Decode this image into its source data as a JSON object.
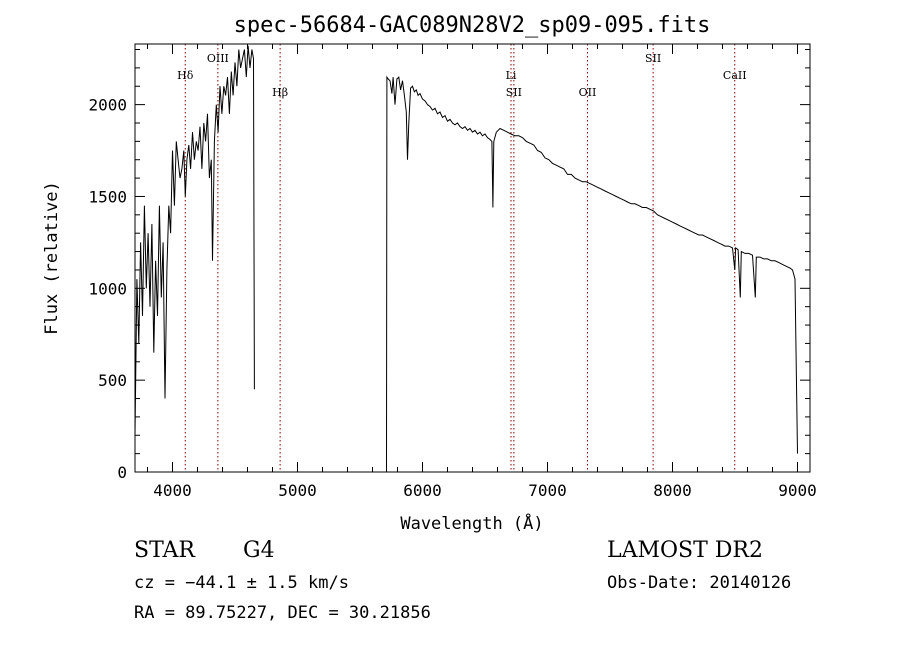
{
  "chart_data": {
    "type": "line",
    "title": "spec-56684-GAC089N28V2_sp09-095.fits",
    "xlabel": "Wavelength (Å)",
    "ylabel": "Flux (relative)",
    "xlim": [
      3700,
      9100
    ],
    "ylim": [
      0,
      2330
    ],
    "x_ticks": [
      4000,
      5000,
      6000,
      7000,
      8000,
      9000
    ],
    "y_ticks": [
      0,
      500,
      1000,
      1500,
      2000
    ],
    "grid": false,
    "line_color": "#000000",
    "marker_color": "#8b0000",
    "lines": [
      {
        "label": "Hδ",
        "x": 4102,
        "label_row": "middle"
      },
      {
        "label": "OIII",
        "x": 4363,
        "label_row": "top"
      },
      {
        "label": "Hβ",
        "x": 4861,
        "label_row": "lower"
      },
      {
        "label": "Li",
        "x": 6708,
        "label_row": "middle"
      },
      {
        "label": "SII",
        "x": 6731,
        "label_row": "lower"
      },
      {
        "label": "OII",
        "x": 7320,
        "label_row": "lower"
      },
      {
        "label": "SII",
        "x": 7845,
        "label_row": "top"
      },
      {
        "label": "CaII",
        "x": 8498,
        "label_row": "middle"
      }
    ],
    "series": [
      {
        "segments": [
          [
            [
              3700,
              200
            ],
            [
              3715,
              1050
            ],
            [
              3730,
              700
            ],
            [
              3745,
              1250
            ],
            [
              3760,
              850
            ],
            [
              3775,
              1450
            ],
            [
              3790,
              1000
            ],
            [
              3805,
              1300
            ],
            [
              3820,
              900
            ],
            [
              3835,
              1350
            ],
            [
              3850,
              650
            ],
            [
              3865,
              1150
            ],
            [
              3880,
              850
            ],
            [
              3895,
              1450
            ],
            [
              3910,
              950
            ],
            [
              3925,
              1250
            ],
            [
              3940,
              400
            ],
            [
              3955,
              1100
            ],
            [
              3970,
              1450
            ],
            [
              3985,
              1300
            ],
            [
              4000,
              1750
            ],
            [
              4015,
              1450
            ],
            [
              4030,
              1800
            ],
            [
              4045,
              1700
            ],
            [
              4060,
              1600
            ],
            [
              4075,
              1650
            ],
            [
              4090,
              1750
            ],
            [
              4102,
              1500
            ],
            [
              4115,
              1700
            ],
            [
              4130,
              1780
            ],
            [
              4145,
              1650
            ],
            [
              4160,
              1850
            ],
            [
              4175,
              1700
            ],
            [
              4190,
              1800
            ],
            [
              4205,
              1750
            ],
            [
              4220,
              1880
            ],
            [
              4235,
              1650
            ],
            [
              4250,
              1900
            ],
            [
              4265,
              1800
            ],
            [
              4280,
              1950
            ],
            [
              4295,
              1600
            ],
            [
              4310,
              1700
            ],
            [
              4320,
              1150
            ],
            [
              4335,
              1800
            ],
            [
              4350,
              2000
            ],
            [
              4365,
              1850
            ],
            [
              4380,
              2100
            ],
            [
              4395,
              1950
            ],
            [
              4410,
              2100
            ],
            [
              4425,
              2050
            ],
            [
              4440,
              2150
            ],
            [
              4455,
              1950
            ],
            [
              4470,
              2180
            ],
            [
              4485,
              2050
            ],
            [
              4500,
              2230
            ],
            [
              4515,
              2100
            ],
            [
              4530,
              2300
            ],
            [
              4545,
              2200
            ],
            [
              4560,
              2250
            ],
            [
              4575,
              2300
            ],
            [
              4590,
              2150
            ],
            [
              4605,
              2320
            ],
            [
              4620,
              2200
            ],
            [
              4635,
              2300
            ],
            [
              4648,
              2250
            ],
            [
              4655,
              450
            ]
          ],
          [
            [
              5712,
              0
            ],
            [
              5715,
              2150
            ],
            [
              5725,
              2140
            ],
            [
              5740,
              2130
            ],
            [
              5755,
              2060
            ],
            [
              5765,
              2150
            ],
            [
              5780,
              2000
            ],
            [
              5795,
              2140
            ],
            [
              5810,
              2150
            ],
            [
              5825,
              2080
            ],
            [
              5840,
              2130
            ],
            [
              5855,
              2050
            ],
            [
              5870,
              1960
            ],
            [
              5880,
              1700
            ],
            [
              5890,
              1900
            ],
            [
              5905,
              2090
            ],
            [
              5920,
              2100
            ],
            [
              5935,
              2070
            ],
            [
              5950,
              2080
            ],
            [
              5965,
              2050
            ],
            [
              5980,
              2060
            ],
            [
              6000,
              2030
            ],
            [
              6020,
              2020
            ],
            [
              6040,
              2000
            ],
            [
              6060,
              1990
            ],
            [
              6080,
              1970
            ],
            [
              6100,
              1980
            ],
            [
              6120,
              1950
            ],
            [
              6140,
              1960
            ],
            [
              6160,
              1930
            ],
            [
              6180,
              1940
            ],
            [
              6200,
              1910
            ],
            [
              6220,
              1920
            ],
            [
              6240,
              1900
            ],
            [
              6260,
              1890
            ],
            [
              6280,
              1900
            ],
            [
              6300,
              1880
            ],
            [
              6320,
              1870
            ],
            [
              6340,
              1880
            ],
            [
              6360,
              1860
            ],
            [
              6380,
              1870
            ],
            [
              6400,
              1850
            ],
            [
              6420,
              1860
            ],
            [
              6440,
              1840
            ],
            [
              6460,
              1850
            ],
            [
              6480,
              1830
            ],
            [
              6500,
              1840
            ],
            [
              6520,
              1820
            ],
            [
              6540,
              1810
            ],
            [
              6555,
              1800
            ],
            [
              6563,
              1440
            ],
            [
              6570,
              1800
            ],
            [
              6590,
              1850
            ],
            [
              6620,
              1870
            ],
            [
              6650,
              1860
            ],
            [
              6680,
              1850
            ],
            [
              6708,
              1840
            ],
            [
              6740,
              1830
            ],
            [
              6770,
              1830
            ],
            [
              6800,
              1820
            ],
            [
              6830,
              1800
            ],
            [
              6860,
              1790
            ],
            [
              6890,
              1780
            ],
            [
              6920,
              1750
            ],
            [
              6950,
              1740
            ],
            [
              6980,
              1710
            ],
            [
              7010,
              1700
            ],
            [
              7040,
              1680
            ],
            [
              7070,
              1670
            ],
            [
              7100,
              1660
            ],
            [
              7130,
              1650
            ],
            [
              7160,
              1620
            ],
            [
              7190,
              1620
            ],
            [
              7220,
              1600
            ],
            [
              7250,
              1590
            ],
            [
              7280,
              1580
            ],
            [
              7310,
              1580
            ],
            [
              7340,
              1570
            ],
            [
              7370,
              1560
            ],
            [
              7400,
              1550
            ],
            [
              7430,
              1540
            ],
            [
              7460,
              1530
            ],
            [
              7490,
              1520
            ],
            [
              7520,
              1510
            ],
            [
              7550,
              1500
            ],
            [
              7580,
              1490
            ],
            [
              7610,
              1480
            ],
            [
              7640,
              1470
            ],
            [
              7670,
              1460
            ],
            [
              7700,
              1460
            ],
            [
              7730,
              1450
            ],
            [
              7760,
              1440
            ],
            [
              7790,
              1440
            ],
            [
              7820,
              1430
            ],
            [
              7850,
              1420
            ],
            [
              7880,
              1400
            ],
            [
              7910,
              1390
            ],
            [
              7940,
              1380
            ],
            [
              7970,
              1370
            ],
            [
              8000,
              1360
            ],
            [
              8030,
              1350
            ],
            [
              8060,
              1340
            ],
            [
              8090,
              1330
            ],
            [
              8120,
              1320
            ],
            [
              8150,
              1310
            ],
            [
              8180,
              1300
            ],
            [
              8210,
              1290
            ],
            [
              8240,
              1290
            ],
            [
              8270,
              1280
            ],
            [
              8300,
              1270
            ],
            [
              8330,
              1260
            ],
            [
              8360,
              1250
            ],
            [
              8390,
              1240
            ],
            [
              8420,
              1230
            ],
            [
              8450,
              1230
            ],
            [
              8480,
              1220
            ],
            [
              8498,
              1100
            ],
            [
              8505,
              1220
            ],
            [
              8525,
              1210
            ],
            [
              8542,
              950
            ],
            [
              8550,
              1200
            ],
            [
              8580,
              1190
            ],
            [
              8610,
              1190
            ],
            [
              8640,
              1180
            ],
            [
              8662,
              950
            ],
            [
              8670,
              1170
            ],
            [
              8700,
              1170
            ],
            [
              8730,
              1160
            ],
            [
              8760,
              1160
            ],
            [
              8790,
              1150
            ],
            [
              8820,
              1150
            ],
            [
              8850,
              1140
            ],
            [
              8880,
              1130
            ],
            [
              8910,
              1120
            ],
            [
              8940,
              1110
            ],
            [
              8960,
              1100
            ],
            [
              8980,
              1050
            ],
            [
              9000,
              100
            ]
          ]
        ]
      }
    ]
  },
  "footer": {
    "object_type": "STAR",
    "subclass": "G4",
    "cz": "cz = −44.1 ± 1.5 km/s",
    "radec": "RA =  89.75227, DEC =  30.21856",
    "survey": "LAMOST DR2",
    "obs_date": "Obs-Date: 20140126"
  }
}
